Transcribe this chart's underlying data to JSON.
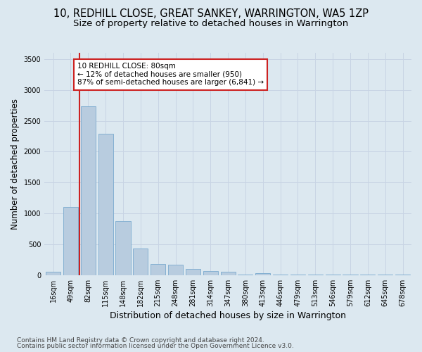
{
  "title_line1": "10, REDHILL CLOSE, GREAT SANKEY, WARRINGTON, WA5 1ZP",
  "title_line2": "Size of property relative to detached houses in Warrington",
  "xlabel": "Distribution of detached houses by size in Warrington",
  "ylabel": "Number of detached properties",
  "categories": [
    "16sqm",
    "49sqm",
    "82sqm",
    "115sqm",
    "148sqm",
    "182sqm",
    "215sqm",
    "248sqm",
    "281sqm",
    "314sqm",
    "347sqm",
    "380sqm",
    "413sqm",
    "446sqm",
    "479sqm",
    "513sqm",
    "546sqm",
    "579sqm",
    "612sqm",
    "645sqm",
    "678sqm"
  ],
  "values": [
    55,
    1100,
    2730,
    2290,
    875,
    430,
    175,
    165,
    95,
    65,
    55,
    5,
    35,
    5,
    5,
    5,
    5,
    5,
    5,
    5,
    5
  ],
  "bar_color": "#b8ccdf",
  "bar_edge_color": "#7aaace",
  "red_line_bar_index": 2,
  "highlight_color": "#cc2222",
  "annotation_text": "10 REDHILL CLOSE: 80sqm\n← 12% of detached houses are smaller (950)\n87% of semi-detached houses are larger (6,841) →",
  "annotation_box_facecolor": "#ffffff",
  "annotation_box_edgecolor": "#cc2222",
  "ylim": [
    0,
    3600
  ],
  "yticks": [
    0,
    500,
    1000,
    1500,
    2000,
    2500,
    3000,
    3500
  ],
  "grid_color": "#c8d4e4",
  "bg_color": "#dce8f0",
  "footer_line1": "Contains HM Land Registry data © Crown copyright and database right 2024.",
  "footer_line2": "Contains public sector information licensed under the Open Government Licence v3.0.",
  "title_fontsize": 10.5,
  "subtitle_fontsize": 9.5,
  "ylabel_fontsize": 8.5,
  "xlabel_fontsize": 9,
  "tick_fontsize": 7,
  "ann_fontsize": 7.5,
  "footer_fontsize": 6.5
}
